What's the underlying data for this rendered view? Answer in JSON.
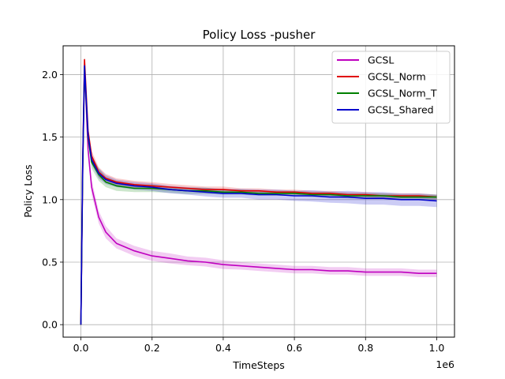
{
  "chart_data": {
    "type": "line",
    "title": "Policy Loss -pusher",
    "xlabel": "TimeSteps",
    "ylabel": "Policy Loss",
    "x_offset_text": "1e6",
    "xlim": [
      -0.05,
      1.05
    ],
    "ylim": [
      -0.1,
      2.23
    ],
    "x_ticks": [
      0.0,
      0.2,
      0.4,
      0.6,
      0.8,
      1.0
    ],
    "x_tick_labels": [
      "0.0",
      "0.2",
      "0.4",
      "0.6",
      "0.8",
      "1.0"
    ],
    "y_ticks": [
      0.0,
      0.5,
      1.0,
      1.5,
      2.0
    ],
    "y_tick_labels": [
      "0.0",
      "0.5",
      "1.0",
      "1.5",
      "2.0"
    ],
    "grid": true,
    "legend_position": "top-right",
    "series": [
      {
        "name": "GCSL",
        "color": "#bf00bf",
        "x": [
          0,
          0.005,
          0.01,
          0.02,
          0.03,
          0.05,
          0.07,
          0.1,
          0.15,
          0.2,
          0.25,
          0.3,
          0.35,
          0.4,
          0.45,
          0.5,
          0.55,
          0.6,
          0.65,
          0.7,
          0.75,
          0.8,
          0.85,
          0.9,
          0.95,
          1.0
        ],
        "y": [
          0.0,
          1.2,
          2.06,
          1.4,
          1.1,
          0.86,
          0.74,
          0.65,
          0.59,
          0.55,
          0.53,
          0.51,
          0.5,
          0.48,
          0.47,
          0.46,
          0.45,
          0.44,
          0.44,
          0.43,
          0.43,
          0.42,
          0.42,
          0.42,
          0.41,
          0.41
        ],
        "band": [
          0.0,
          0.08,
          0.05,
          0.06,
          0.06,
          0.05,
          0.05,
          0.04,
          0.04,
          0.04,
          0.04,
          0.035,
          0.035,
          0.035,
          0.03,
          0.03,
          0.03,
          0.03,
          0.03,
          0.03,
          0.03,
          0.03,
          0.03,
          0.03,
          0.03,
          0.03
        ]
      },
      {
        "name": "GCSL_Norm",
        "color": "#e00000",
        "x": [
          0,
          0.005,
          0.01,
          0.02,
          0.03,
          0.05,
          0.07,
          0.1,
          0.15,
          0.2,
          0.25,
          0.3,
          0.35,
          0.4,
          0.45,
          0.5,
          0.55,
          0.6,
          0.65,
          0.7,
          0.75,
          0.8,
          0.85,
          0.9,
          0.95,
          1.0
        ],
        "y": [
          0.0,
          1.3,
          2.12,
          1.55,
          1.35,
          1.22,
          1.17,
          1.14,
          1.12,
          1.11,
          1.1,
          1.09,
          1.08,
          1.08,
          1.07,
          1.07,
          1.06,
          1.06,
          1.05,
          1.05,
          1.04,
          1.04,
          1.03,
          1.03,
          1.03,
          1.02
        ],
        "band": [
          0.0,
          0.05,
          0.03,
          0.04,
          0.04,
          0.04,
          0.035,
          0.03,
          0.03,
          0.03,
          0.025,
          0.025,
          0.025,
          0.025,
          0.02,
          0.02,
          0.02,
          0.02,
          0.02,
          0.02,
          0.02,
          0.02,
          0.02,
          0.02,
          0.02,
          0.02
        ]
      },
      {
        "name": "GCSL_Norm_T",
        "color": "#008000",
        "x": [
          0,
          0.005,
          0.01,
          0.02,
          0.03,
          0.05,
          0.07,
          0.1,
          0.15,
          0.2,
          0.25,
          0.3,
          0.35,
          0.4,
          0.45,
          0.5,
          0.55,
          0.6,
          0.65,
          0.7,
          0.75,
          0.8,
          0.85,
          0.9,
          0.95,
          1.0
        ],
        "y": [
          0.0,
          1.25,
          2.06,
          1.5,
          1.3,
          1.2,
          1.14,
          1.11,
          1.09,
          1.09,
          1.08,
          1.07,
          1.07,
          1.06,
          1.06,
          1.05,
          1.05,
          1.05,
          1.04,
          1.04,
          1.03,
          1.03,
          1.03,
          1.02,
          1.02,
          1.02
        ],
        "band": [
          0.0,
          0.05,
          0.03,
          0.04,
          0.05,
          0.05,
          0.04,
          0.04,
          0.03,
          0.03,
          0.025,
          0.025,
          0.025,
          0.02,
          0.02,
          0.02,
          0.02,
          0.02,
          0.02,
          0.02,
          0.02,
          0.02,
          0.02,
          0.02,
          0.02,
          0.02
        ]
      },
      {
        "name": "GCSL_Shared",
        "color": "#0000cc",
        "x": [
          0,
          0.005,
          0.01,
          0.02,
          0.03,
          0.05,
          0.07,
          0.1,
          0.15,
          0.2,
          0.25,
          0.3,
          0.35,
          0.4,
          0.45,
          0.5,
          0.55,
          0.6,
          0.65,
          0.7,
          0.75,
          0.8,
          0.85,
          0.9,
          0.95,
          1.0
        ],
        "y": [
          0.0,
          1.28,
          2.07,
          1.52,
          1.32,
          1.21,
          1.16,
          1.13,
          1.11,
          1.1,
          1.08,
          1.07,
          1.06,
          1.05,
          1.05,
          1.04,
          1.04,
          1.03,
          1.03,
          1.02,
          1.02,
          1.01,
          1.01,
          1.0,
          1.0,
          0.99
        ],
        "band": [
          0.0,
          0.05,
          0.03,
          0.04,
          0.04,
          0.04,
          0.035,
          0.03,
          0.03,
          0.03,
          0.03,
          0.03,
          0.035,
          0.035,
          0.035,
          0.04,
          0.04,
          0.04,
          0.045,
          0.045,
          0.05,
          0.05,
          0.05,
          0.05,
          0.05,
          0.05
        ]
      }
    ]
  }
}
